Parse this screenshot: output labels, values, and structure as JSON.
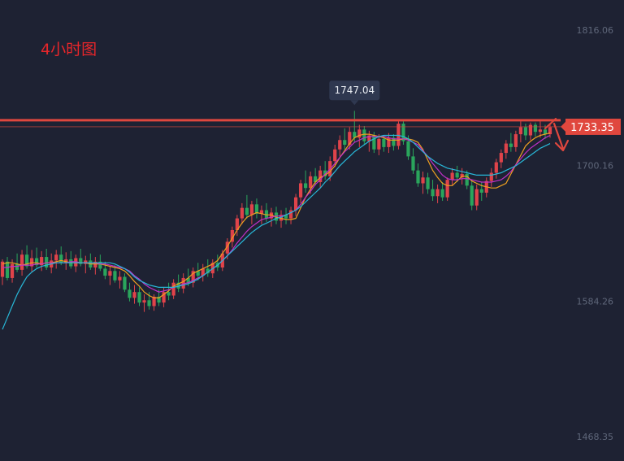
{
  "period_label": "4小时图",
  "colors": {
    "background": "#1e2233",
    "up": "#e0434a",
    "down": "#2aa55c",
    "resistance_line": "#e0473e",
    "price_tag": "#e0473e",
    "high_tag": "#2f3850",
    "axis_text": "#5f677a",
    "arrow": "#e0473e"
  },
  "chart_data": {
    "type": "candlestick",
    "title": "",
    "y_ticks": [
      1816.06,
      1700.16,
      1584.26,
      1468.35
    ],
    "ylim": [
      1468.35,
      1816.06
    ],
    "last_price": 1733.35,
    "high_marker": 1747.04,
    "resistance_level": 1733.35,
    "ma_series": [
      {
        "color": "#f0a020",
        "values": [
          1616,
          1617,
          1617,
          1616,
          1615,
          1616,
          1617,
          1617,
          1616,
          1617,
          1617,
          1618,
          1619,
          1618,
          1617,
          1617,
          1617,
          1617,
          1616,
          1616,
          1616,
          1615,
          1614,
          1613,
          1612,
          1610,
          1606,
          1601,
          1597,
          1592,
          1589,
          1587,
          1587,
          1590,
          1593,
          1597,
          1599,
          1601,
          1604,
          1608,
          1610,
          1612,
          1614,
          1616,
          1619,
          1625,
          1631,
          1638,
          1645,
          1651,
          1656,
          1658,
          1660,
          1659,
          1658,
          1658,
          1656,
          1655,
          1654,
          1654,
          1655,
          1664,
          1673,
          1680,
          1686,
          1690,
          1692,
          1695,
          1700,
          1707,
          1713,
          1719,
          1724,
          1726,
          1727,
          1727,
          1726,
          1725,
          1724,
          1722,
          1722,
          1722,
          1723,
          1723,
          1722,
          1720,
          1714,
          1705,
          1696,
          1690,
          1685,
          1683,
          1683,
          1687,
          1691,
          1691,
          1687,
          1685,
          1683,
          1682,
          1681,
          1681,
          1683,
          1685,
          1693,
          1701,
          1709,
          1717,
          1721,
          1724,
          1726,
          1727,
          1728
        ]
      },
      {
        "color": "#c030c8",
        "values": [
          1613,
          1613,
          1614,
          1614,
          1615,
          1615,
          1615,
          1616,
          1616,
          1617,
          1617,
          1617,
          1617,
          1617,
          1618,
          1618,
          1617,
          1617,
          1617,
          1617,
          1616,
          1616,
          1615,
          1614,
          1613,
          1612,
          1610,
          1606,
          1603,
          1599,
          1596,
          1594,
          1592,
          1593,
          1594,
          1596,
          1597,
          1599,
          1600,
          1602,
          1604,
          1606,
          1609,
          1612,
          1615,
          1619,
          1623,
          1628,
          1634,
          1639,
          1644,
          1648,
          1651,
          1654,
          1655,
          1656,
          1657,
          1657,
          1658,
          1660,
          1662,
          1667,
          1673,
          1678,
          1684,
          1688,
          1693,
          1697,
          1702,
          1707,
          1712,
          1716,
          1720,
          1722,
          1724,
          1725,
          1725,
          1725,
          1725,
          1724,
          1723,
          1723,
          1723,
          1722,
          1720,
          1718,
          1713,
          1708,
          1702,
          1697,
          1692,
          1689,
          1688,
          1688,
          1689,
          1689,
          1688,
          1687,
          1686,
          1686,
          1686,
          1687,
          1688,
          1691,
          1695,
          1701,
          1706,
          1711,
          1715,
          1718,
          1721,
          1724,
          1726
        ]
      },
      {
        "color": "#28b8d8",
        "values": [
          1560,
          1570,
          1580,
          1590,
          1598,
          1605,
          1609,
          1612,
          1614,
          1615,
          1616,
          1617,
          1617,
          1617,
          1617,
          1617,
          1617,
          1617,
          1617,
          1617,
          1617,
          1617,
          1617,
          1616,
          1614,
          1612,
          1609,
          1605,
          1602,
          1600,
          1598,
          1597,
          1596,
          1596,
          1596,
          1596,
          1597,
          1598,
          1599,
          1601,
          1603,
          1606,
          1609,
          1612,
          1615,
          1619,
          1623,
          1627,
          1631,
          1635,
          1639,
          1643,
          1646,
          1649,
          1651,
          1653,
          1655,
          1656,
          1658,
          1660,
          1662,
          1665,
          1669,
          1673,
          1677,
          1681,
          1686,
          1690,
          1695,
          1700,
          1704,
          1708,
          1712,
          1715,
          1718,
          1721,
          1723,
          1725,
          1726,
          1726,
          1726,
          1726,
          1725,
          1723,
          1720,
          1716,
          1712,
          1708,
          1705,
          1702,
          1700,
          1698,
          1697,
          1696,
          1695,
          1694,
          1693,
          1692,
          1692,
          1692,
          1692,
          1693,
          1694,
          1696,
          1698,
          1700,
          1703,
          1706,
          1709,
          1712,
          1715,
          1717,
          1719
        ]
      }
    ],
    "candles": [
      {
        "o": 1605,
        "h": 1620,
        "l": 1598,
        "c": 1618
      },
      {
        "o": 1618,
        "h": 1622,
        "l": 1602,
        "c": 1604
      },
      {
        "o": 1604,
        "h": 1620,
        "l": 1600,
        "c": 1616
      },
      {
        "o": 1616,
        "h": 1625,
        "l": 1609,
        "c": 1611
      },
      {
        "o": 1611,
        "h": 1628,
        "l": 1606,
        "c": 1624
      },
      {
        "o": 1624,
        "h": 1632,
        "l": 1612,
        "c": 1614
      },
      {
        "o": 1614,
        "h": 1628,
        "l": 1609,
        "c": 1621
      },
      {
        "o": 1621,
        "h": 1630,
        "l": 1613,
        "c": 1615
      },
      {
        "o": 1615,
        "h": 1627,
        "l": 1610,
        "c": 1622
      },
      {
        "o": 1622,
        "h": 1629,
        "l": 1611,
        "c": 1613
      },
      {
        "o": 1613,
        "h": 1625,
        "l": 1608,
        "c": 1619
      },
      {
        "o": 1619,
        "h": 1628,
        "l": 1612,
        "c": 1624
      },
      {
        "o": 1624,
        "h": 1631,
        "l": 1615,
        "c": 1617
      },
      {
        "o": 1617,
        "h": 1626,
        "l": 1611,
        "c": 1620
      },
      {
        "o": 1620,
        "h": 1627,
        "l": 1612,
        "c": 1614
      },
      {
        "o": 1614,
        "h": 1624,
        "l": 1609,
        "c": 1621
      },
      {
        "o": 1621,
        "h": 1629,
        "l": 1614,
        "c": 1616
      },
      {
        "o": 1616,
        "h": 1623,
        "l": 1608,
        "c": 1619
      },
      {
        "o": 1619,
        "h": 1625,
        "l": 1611,
        "c": 1613
      },
      {
        "o": 1613,
        "h": 1622,
        "l": 1607,
        "c": 1618
      },
      {
        "o": 1618,
        "h": 1624,
        "l": 1610,
        "c": 1612
      },
      {
        "o": 1612,
        "h": 1618,
        "l": 1603,
        "c": 1606
      },
      {
        "o": 1606,
        "h": 1614,
        "l": 1598,
        "c": 1610
      },
      {
        "o": 1610,
        "h": 1615,
        "l": 1600,
        "c": 1602
      },
      {
        "o": 1602,
        "h": 1610,
        "l": 1595,
        "c": 1605
      },
      {
        "o": 1605,
        "h": 1608,
        "l": 1592,
        "c": 1594
      },
      {
        "o": 1594,
        "h": 1600,
        "l": 1584,
        "c": 1587
      },
      {
        "o": 1587,
        "h": 1598,
        "l": 1582,
        "c": 1592
      },
      {
        "o": 1592,
        "h": 1596,
        "l": 1580,
        "c": 1583
      },
      {
        "o": 1583,
        "h": 1590,
        "l": 1575,
        "c": 1585
      },
      {
        "o": 1585,
        "h": 1592,
        "l": 1577,
        "c": 1580
      },
      {
        "o": 1580,
        "h": 1590,
        "l": 1576,
        "c": 1588
      },
      {
        "o": 1588,
        "h": 1594,
        "l": 1580,
        "c": 1583
      },
      {
        "o": 1583,
        "h": 1596,
        "l": 1579,
        "c": 1592
      },
      {
        "o": 1592,
        "h": 1600,
        "l": 1585,
        "c": 1589
      },
      {
        "o": 1589,
        "h": 1603,
        "l": 1586,
        "c": 1600
      },
      {
        "o": 1600,
        "h": 1607,
        "l": 1592,
        "c": 1595
      },
      {
        "o": 1595,
        "h": 1608,
        "l": 1591,
        "c": 1604
      },
      {
        "o": 1604,
        "h": 1612,
        "l": 1597,
        "c": 1600
      },
      {
        "o": 1600,
        "h": 1613,
        "l": 1596,
        "c": 1610
      },
      {
        "o": 1610,
        "h": 1617,
        "l": 1602,
        "c": 1606
      },
      {
        "o": 1606,
        "h": 1616,
        "l": 1601,
        "c": 1612
      },
      {
        "o": 1612,
        "h": 1620,
        "l": 1605,
        "c": 1608
      },
      {
        "o": 1608,
        "h": 1620,
        "l": 1604,
        "c": 1617
      },
      {
        "o": 1617,
        "h": 1624,
        "l": 1610,
        "c": 1613
      },
      {
        "o": 1613,
        "h": 1628,
        "l": 1610,
        "c": 1625
      },
      {
        "o": 1625,
        "h": 1638,
        "l": 1620,
        "c": 1635
      },
      {
        "o": 1635,
        "h": 1648,
        "l": 1630,
        "c": 1645
      },
      {
        "o": 1645,
        "h": 1658,
        "l": 1640,
        "c": 1655
      },
      {
        "o": 1655,
        "h": 1668,
        "l": 1650,
        "c": 1664
      },
      {
        "o": 1664,
        "h": 1675,
        "l": 1655,
        "c": 1658
      },
      {
        "o": 1658,
        "h": 1670,
        "l": 1650,
        "c": 1667
      },
      {
        "o": 1667,
        "h": 1672,
        "l": 1655,
        "c": 1659
      },
      {
        "o": 1659,
        "h": 1666,
        "l": 1650,
        "c": 1662
      },
      {
        "o": 1662,
        "h": 1668,
        "l": 1652,
        "c": 1655
      },
      {
        "o": 1655,
        "h": 1664,
        "l": 1648,
        "c": 1660
      },
      {
        "o": 1660,
        "h": 1665,
        "l": 1650,
        "c": 1653
      },
      {
        "o": 1653,
        "h": 1662,
        "l": 1647,
        "c": 1658
      },
      {
        "o": 1658,
        "h": 1664,
        "l": 1650,
        "c": 1655
      },
      {
        "o": 1655,
        "h": 1665,
        "l": 1650,
        "c": 1662
      },
      {
        "o": 1662,
        "h": 1676,
        "l": 1657,
        "c": 1673
      },
      {
        "o": 1673,
        "h": 1688,
        "l": 1668,
        "c": 1685
      },
      {
        "o": 1685,
        "h": 1696,
        "l": 1677,
        "c": 1681
      },
      {
        "o": 1681,
        "h": 1695,
        "l": 1676,
        "c": 1691
      },
      {
        "o": 1691,
        "h": 1698,
        "l": 1683,
        "c": 1686
      },
      {
        "o": 1686,
        "h": 1700,
        "l": 1681,
        "c": 1696
      },
      {
        "o": 1696,
        "h": 1704,
        "l": 1688,
        "c": 1691
      },
      {
        "o": 1691,
        "h": 1708,
        "l": 1687,
        "c": 1704
      },
      {
        "o": 1704,
        "h": 1718,
        "l": 1699,
        "c": 1714
      },
      {
        "o": 1714,
        "h": 1726,
        "l": 1708,
        "c": 1722
      },
      {
        "o": 1722,
        "h": 1732,
        "l": 1714,
        "c": 1718
      },
      {
        "o": 1718,
        "h": 1733,
        "l": 1714,
        "c": 1729
      },
      {
        "o": 1729,
        "h": 1747,
        "l": 1720,
        "c": 1724
      },
      {
        "o": 1724,
        "h": 1735,
        "l": 1716,
        "c": 1731
      },
      {
        "o": 1731,
        "h": 1734,
        "l": 1718,
        "c": 1721
      },
      {
        "o": 1721,
        "h": 1730,
        "l": 1712,
        "c": 1726
      },
      {
        "o": 1726,
        "h": 1729,
        "l": 1711,
        "c": 1714
      },
      {
        "o": 1714,
        "h": 1727,
        "l": 1709,
        "c": 1723
      },
      {
        "o": 1723,
        "h": 1726,
        "l": 1712,
        "c": 1716
      },
      {
        "o": 1716,
        "h": 1728,
        "l": 1711,
        "c": 1724
      },
      {
        "o": 1724,
        "h": 1727,
        "l": 1713,
        "c": 1717
      },
      {
        "o": 1717,
        "h": 1738,
        "l": 1714,
        "c": 1736
      },
      {
        "o": 1736,
        "h": 1738,
        "l": 1718,
        "c": 1721
      },
      {
        "o": 1721,
        "h": 1726,
        "l": 1705,
        "c": 1708
      },
      {
        "o": 1708,
        "h": 1715,
        "l": 1693,
        "c": 1696
      },
      {
        "o": 1696,
        "h": 1702,
        "l": 1682,
        "c": 1685
      },
      {
        "o": 1685,
        "h": 1695,
        "l": 1676,
        "c": 1690
      },
      {
        "o": 1690,
        "h": 1694,
        "l": 1676,
        "c": 1680
      },
      {
        "o": 1680,
        "h": 1688,
        "l": 1670,
        "c": 1674
      },
      {
        "o": 1674,
        "h": 1684,
        "l": 1668,
        "c": 1680
      },
      {
        "o": 1680,
        "h": 1686,
        "l": 1670,
        "c": 1673
      },
      {
        "o": 1673,
        "h": 1690,
        "l": 1670,
        "c": 1688
      },
      {
        "o": 1688,
        "h": 1698,
        "l": 1683,
        "c": 1694
      },
      {
        "o": 1694,
        "h": 1700,
        "l": 1686,
        "c": 1690
      },
      {
        "o": 1690,
        "h": 1698,
        "l": 1684,
        "c": 1693
      },
      {
        "o": 1693,
        "h": 1696,
        "l": 1680,
        "c": 1683
      },
      {
        "o": 1683,
        "h": 1688,
        "l": 1662,
        "c": 1666
      },
      {
        "o": 1666,
        "h": 1684,
        "l": 1662,
        "c": 1680
      },
      {
        "o": 1680,
        "h": 1686,
        "l": 1670,
        "c": 1677
      },
      {
        "o": 1677,
        "h": 1690,
        "l": 1673,
        "c": 1687
      },
      {
        "o": 1687,
        "h": 1698,
        "l": 1682,
        "c": 1694
      },
      {
        "o": 1694,
        "h": 1706,
        "l": 1689,
        "c": 1703
      },
      {
        "o": 1703,
        "h": 1714,
        "l": 1698,
        "c": 1711
      },
      {
        "o": 1711,
        "h": 1722,
        "l": 1706,
        "c": 1719
      },
      {
        "o": 1719,
        "h": 1728,
        "l": 1712,
        "c": 1716
      },
      {
        "o": 1716,
        "h": 1730,
        "l": 1712,
        "c": 1727
      },
      {
        "o": 1727,
        "h": 1738,
        "l": 1720,
        "c": 1733
      },
      {
        "o": 1733,
        "h": 1736,
        "l": 1722,
        "c": 1726
      },
      {
        "o": 1726,
        "h": 1737,
        "l": 1722,
        "c": 1735
      },
      {
        "o": 1735,
        "h": 1737,
        "l": 1725,
        "c": 1729
      },
      {
        "o": 1729,
        "h": 1738,
        "l": 1724,
        "c": 1731
      },
      {
        "o": 1731,
        "h": 1735,
        "l": 1723,
        "c": 1727
      },
      {
        "o": 1727,
        "h": 1736,
        "l": 1724,
        "c": 1733
      }
    ]
  }
}
